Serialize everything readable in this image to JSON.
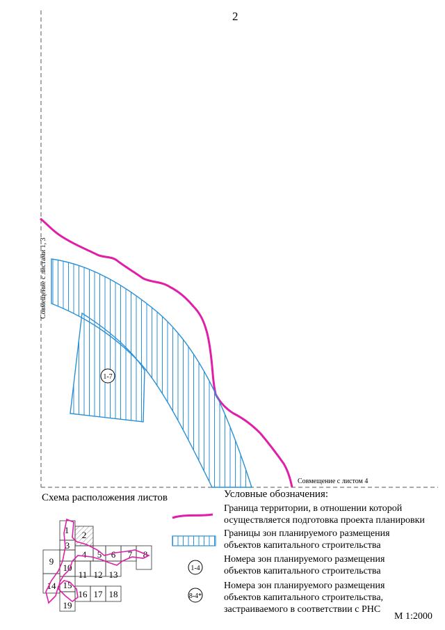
{
  "page_number": "2",
  "joint_labels": {
    "left": "Совмещение с листами 1, 3",
    "right": "Совмещение с листом 4"
  },
  "zone_marker": "1-7",
  "scheme": {
    "title": "Схема расположения листов",
    "sheets": [
      "1",
      "2",
      "3",
      "4",
      "5",
      "6",
      "7",
      "8",
      "9",
      "10",
      "11",
      "12",
      "13",
      "14",
      "15",
      "16",
      "17",
      "18",
      "19"
    ]
  },
  "legend": {
    "title": "Условные обозначения:",
    "items": [
      {
        "symbol": "boundary-line",
        "lines": [
          "Граница территории, в отношении которой",
          "осуществляется подготовка проекта планировки"
        ]
      },
      {
        "symbol": "hatched-zone",
        "lines": [
          "Границы зон планируемого размещения",
          "объектов капитального строительства"
        ]
      },
      {
        "symbol": "circle-marker",
        "marker": "1-4",
        "lines": [
          "Номера зон планируемого размещения",
          "объектов капитального строительства"
        ]
      },
      {
        "symbol": "circle-marker",
        "marker": "8-4*",
        "lines": [
          "Номера зон планируемого размещения",
          "объектов капитального строительства,",
          "застраиваемого в соответствии с РНС"
        ]
      }
    ]
  },
  "scale": "М 1:2000",
  "colors": {
    "boundary": "#e01ea8",
    "zone": "#2a8fd6",
    "joint_line": "#555555"
  }
}
